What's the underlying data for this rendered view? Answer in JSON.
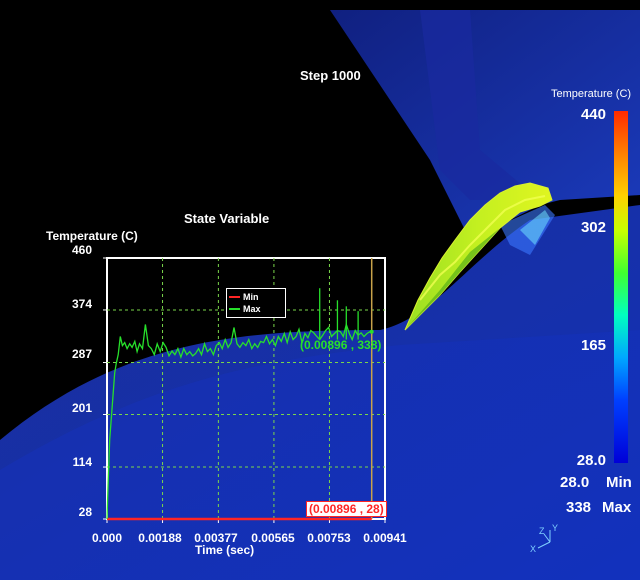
{
  "step_label": "Step 1000",
  "colorbar": {
    "title": "Temperature (C)",
    "ticks": [
      "440",
      "302",
      "165",
      "28.0"
    ],
    "min_value": "28.0",
    "min_label": "Min",
    "max_value": "338",
    "max_label": "Max"
  },
  "axis_triad": {
    "x": "X",
    "y": "Y",
    "z": "Z"
  },
  "colors": {
    "max_series": "#27e02b",
    "min_series": "#ff2525",
    "grid": "#7ad64a",
    "cursor": "#c8a24a"
  },
  "chart_data": {
    "type": "line",
    "title": "State Variable",
    "ylabel": "Temperature (C)",
    "xlabel": "Time (sec)",
    "ylim": [
      28,
      460
    ],
    "xlim": [
      0,
      0.00941
    ],
    "y_ticks": [
      "460",
      "374",
      "287",
      "201",
      "114",
      "28"
    ],
    "x_ticks": [
      "0.000",
      "0.00188",
      "0.00377",
      "0.00565",
      "0.00753",
      "0.00941"
    ],
    "grid": true,
    "legend_position": "top-center",
    "cursor_x": 0.00896,
    "readout_max": "(0.00896 , 338)",
    "readout_min": "(0.00896 , 28)",
    "series": [
      {
        "name": "Min",
        "color": "#ff2525",
        "x": [
          0,
          0.00896
        ],
        "y": [
          28,
          28
        ]
      },
      {
        "name": "Max",
        "color": "#27e02b",
        "x": [
          0,
          4e-05,
          9e-05,
          0.00014,
          0.0002,
          0.00026,
          0.00031,
          0.00038,
          0.00045,
          0.00052,
          0.0006,
          0.00068,
          0.00077,
          0.00085,
          0.00094,
          0.00102,
          0.0011,
          0.0012,
          0.0013,
          0.0014,
          0.0015,
          0.0016,
          0.0017,
          0.0018,
          0.0019,
          0.002,
          0.0021,
          0.0022,
          0.0023,
          0.0024,
          0.0025,
          0.0026,
          0.0027,
          0.0028,
          0.0029,
          0.003,
          0.0031,
          0.0032,
          0.0033,
          0.0034,
          0.0035,
          0.0036,
          0.0037,
          0.0038,
          0.0039,
          0.004,
          0.0041,
          0.0042,
          0.0043,
          0.0044,
          0.0045,
          0.0046,
          0.0047,
          0.0048,
          0.0049,
          0.005,
          0.0051,
          0.0052,
          0.0053,
          0.0054,
          0.0055,
          0.0056,
          0.0057,
          0.0058,
          0.0059,
          0.006,
          0.0061,
          0.0062,
          0.0063,
          0.0064,
          0.0065,
          0.0066,
          0.0067,
          0.0068,
          0.0069,
          0.007,
          0.0071,
          0.0072,
          0.0073,
          0.0074,
          0.0075,
          0.0076,
          0.0077,
          0.0078,
          0.0079,
          0.008,
          0.0081,
          0.0082,
          0.0083,
          0.0084,
          0.0085,
          0.0086,
          0.0087,
          0.0088,
          0.0089,
          0.00896
        ],
        "y": [
          28,
          90,
          160,
          190,
          230,
          270,
          285,
          300,
          330,
          315,
          320,
          310,
          318,
          312,
          322,
          305,
          318,
          310,
          350,
          315,
          310,
          300,
          318,
          305,
          320,
          312,
          298,
          306,
          300,
          310,
          296,
          310,
          300,
          305,
          298,
          302,
          310,
          300,
          318,
          305,
          310,
          300,
          315,
          320,
          310,
          325,
          312,
          320,
          345,
          318,
          312,
          320,
          315,
          325,
          310,
          318,
          312,
          322,
          320,
          330,
          318,
          325,
          315,
          330,
          322,
          335,
          320,
          338,
          325,
          330,
          342,
          320,
          335,
          328,
          340,
          336,
          330,
          325,
          332,
          340,
          345,
          330,
          335,
          340,
          338,
          330,
          350,
          335,
          325,
          340,
          332,
          336,
          330,
          335,
          338,
          338
        ]
      }
    ],
    "spikes": [
      {
        "x": 0.0072,
        "y": 410
      },
      {
        "x": 0.0078,
        "y": 390
      },
      {
        "x": 0.0081,
        "y": 380
      },
      {
        "x": 0.0085,
        "y": 372
      }
    ]
  }
}
